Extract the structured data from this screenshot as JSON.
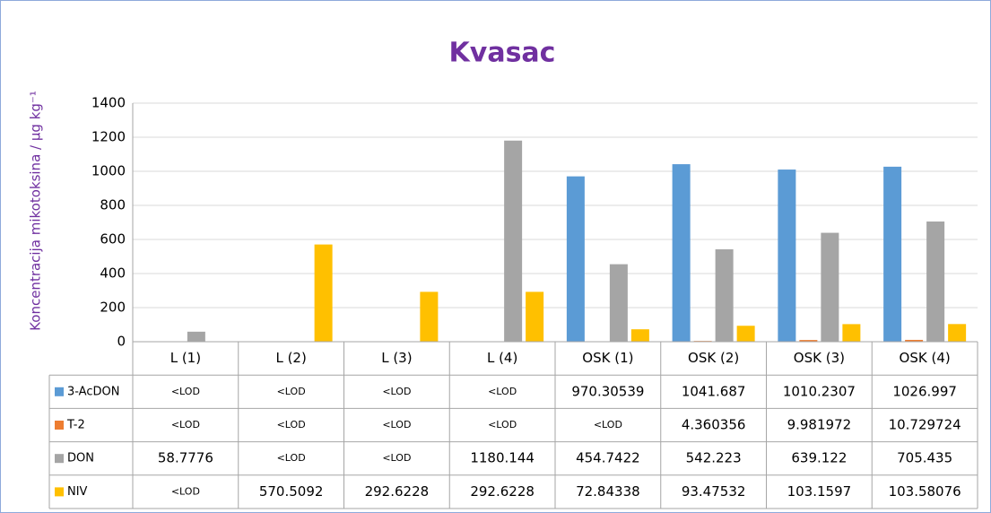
{
  "chart_data": {
    "type": "bar",
    "title": "Kvasac",
    "y_label": "Koncentracija mikotoksina / µg kg⁻¹",
    "categories": [
      "L (1)",
      "L (2)",
      "L (3)",
      "L (4)",
      "OSK (1)",
      "OSK (2)",
      "OSK (3)",
      "OSK (4)"
    ],
    "series": [
      {
        "name": "3-AcDON",
        "color": "#5b9bd5",
        "values": [
          null,
          null,
          null,
          null,
          970.30539,
          1041.687,
          1010.2307,
          1026.997
        ],
        "value_labels": [
          "<LOD",
          "<LOD",
          "<LOD",
          "<LOD",
          "970.30539",
          "1041.687",
          "1010.2307",
          "1026.997"
        ]
      },
      {
        "name": "T-2",
        "color": "#ed7d31",
        "values": [
          null,
          null,
          null,
          null,
          null,
          4.360356,
          9.981972,
          10.729724
        ],
        "value_labels": [
          "<LOD",
          "<LOD",
          "<LOD",
          "<LOD",
          "<LOD",
          "4.360356",
          "9.981972",
          "10.729724"
        ]
      },
      {
        "name": "DON",
        "color": "#a5a5a5",
        "values": [
          58.7776,
          null,
          null,
          1180.144,
          454.7422,
          542.223,
          639.122,
          705.435
        ],
        "value_labels": [
          "58.7776",
          "<LOD",
          "<LOD",
          "1180.144",
          "454.7422",
          "542.223",
          "639.122",
          "705.435"
        ]
      },
      {
        "name": "NIV",
        "color": "#ffc000",
        "values": [
          null,
          570.5092,
          292.6228,
          292.6228,
          72.84338,
          93.47532,
          103.1597,
          103.58076
        ],
        "value_labels": [
          "<LOD",
          "570.5092",
          "292.6228",
          "292.6228",
          "72.84338",
          "93.47532",
          "103.1597",
          "103.58076"
        ]
      }
    ],
    "ylim": [
      0,
      1400
    ],
    "yticks": [
      0,
      200,
      400,
      600,
      800,
      1000,
      1200,
      1400
    ],
    "grid": true
  }
}
